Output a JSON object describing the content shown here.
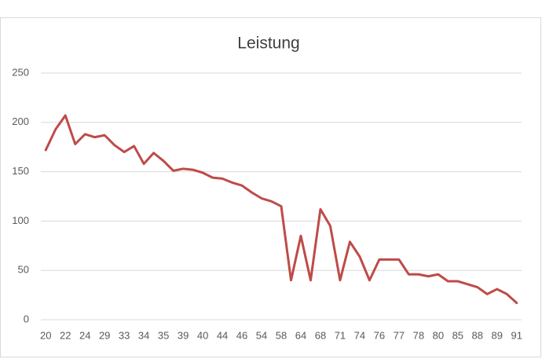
{
  "chart_data": {
    "type": "line",
    "title": "Leistung",
    "categories": [
      "20",
      null,
      "22",
      null,
      "24",
      null,
      "29",
      null,
      "33",
      null,
      "34",
      null,
      "35",
      null,
      "39",
      null,
      "40",
      null,
      "44",
      null,
      "46",
      null,
      "54",
      null,
      "58",
      null,
      "64",
      null,
      "68",
      null,
      "71",
      null,
      "74",
      null,
      "76",
      null,
      "77",
      null,
      "78",
      null,
      "80",
      null,
      "85",
      null,
      "88",
      null,
      "89",
      null,
      "91"
    ],
    "series": [
      {
        "name": "Leistung",
        "color": "#be4b48",
        "values": [
          172,
          193,
          207,
          178,
          188,
          185,
          187,
          177,
          170,
          176,
          158,
          169,
          161,
          151,
          153,
          152,
          149,
          144,
          143,
          139,
          136,
          129,
          123,
          120,
          115,
          40,
          85,
          40,
          112,
          95,
          40,
          79,
          64,
          40,
          61,
          61,
          61,
          46,
          46,
          44,
          46,
          39,
          39,
          36,
          33,
          26,
          31,
          26,
          17
        ]
      }
    ],
    "ylim": [
      0,
      250
    ],
    "yticks": [
      0,
      50,
      100,
      150,
      200,
      250
    ],
    "grid": true
  }
}
